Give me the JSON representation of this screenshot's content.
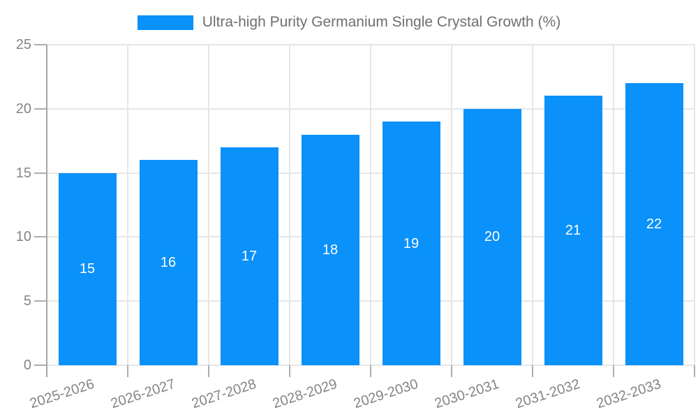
{
  "chart_data": {
    "type": "bar",
    "title": "Ultra-high Purity Germanium Single Crystal Growth (%)",
    "categories": [
      "2025-2026",
      "2026-2027",
      "2027-2028",
      "2028-2029",
      "2029-2030",
      "2030-2031",
      "2031-2032",
      "2032-2033"
    ],
    "values": [
      15,
      16,
      17,
      18,
      19,
      20,
      21,
      22
    ],
    "bar_value_labels": [
      "15",
      "16",
      "17",
      "18",
      "19",
      "20",
      "21",
      "22"
    ],
    "xlabel": "",
    "ylabel": "",
    "ylim": [
      0,
      25
    ],
    "yticks": [
      0,
      5,
      10,
      15,
      20,
      25
    ],
    "grid": true,
    "legend_position": "top-center",
    "colors": {
      "bar": "#0A91FA",
      "bar_value_text": "#ffffff",
      "axis_text": "#858585",
      "legend_text": "#6F6F6F",
      "gridline": "#E6E6E6",
      "axis_line": "#A6A6A6",
      "tick": "#ADADAD",
      "background": "#ffffff"
    }
  }
}
